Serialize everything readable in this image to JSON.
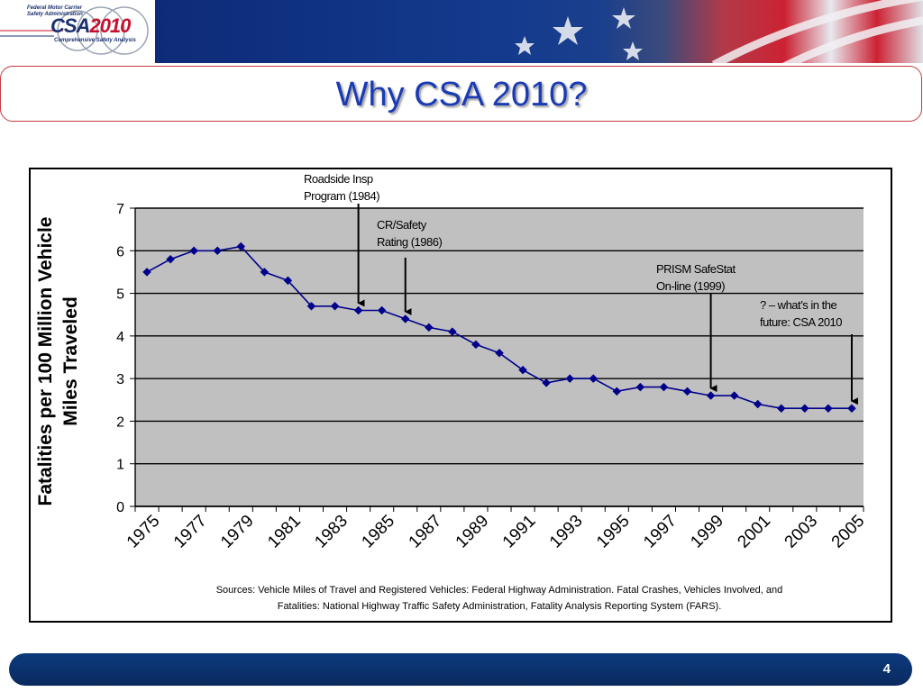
{
  "header": {
    "agency": "Federal Motor Carrier\nSafety Administration",
    "logo_csa": "CSA",
    "logo_year": "2010",
    "logo_sub": "Comprehensive Safety Analysis"
  },
  "title": "Why CSA 2010?",
  "colors": {
    "title": "#1a3bb5",
    "series": "#00008b",
    "plot_bg": "#c0c0c0",
    "footer": "#0a2a5e"
  },
  "chart_data": {
    "type": "line",
    "ylabel": "Fatalities per 100 Million Vehicle Miles Traveled",
    "xlabel": "",
    "ylim": [
      0,
      7
    ],
    "yticks": [
      "0",
      "1",
      "2",
      "3",
      "4",
      "5",
      "6",
      "7"
    ],
    "x": [
      1975,
      1976,
      1977,
      1978,
      1979,
      1980,
      1981,
      1982,
      1983,
      1984,
      1985,
      1986,
      1987,
      1988,
      1989,
      1990,
      1991,
      1992,
      1993,
      1994,
      1995,
      1996,
      1997,
      1998,
      1999,
      2000,
      2001,
      2002,
      2003,
      2004,
      2005
    ],
    "xticks": [
      "1975",
      "1977",
      "1979",
      "1981",
      "1983",
      "1985",
      "1987",
      "1989",
      "1991",
      "1993",
      "1995",
      "1997",
      "1999",
      "2001",
      "2003",
      "2005"
    ],
    "series": [
      {
        "values": [
          5.5,
          5.8,
          6.0,
          6.0,
          6.1,
          5.5,
          5.3,
          4.7,
          4.7,
          4.6,
          4.6,
          4.4,
          4.2,
          4.1,
          3.8,
          3.6,
          3.2,
          2.9,
          3.0,
          3.0,
          2.7,
          2.8,
          2.8,
          2.7,
          2.6,
          2.6,
          2.4,
          2.3,
          2.3,
          2.3,
          2.3
        ]
      }
    ],
    "grid": true,
    "annotations": [
      {
        "text": "Roadside Insp\nProgram (1984)",
        "x": 1984,
        "y": 4.6
      },
      {
        "text": "CR/Safety\nRating (1986)",
        "x": 1986,
        "y": 4.4
      },
      {
        "text": "PRISM SafeStat\nOn-line (1999)",
        "x": 1999,
        "y": 2.6
      },
      {
        "text": "? – what’s in the\nfuture: CSA  2010",
        "x": 2005,
        "y": 2.3
      }
    ],
    "sources": "Sources: Vehicle Miles of Travel and Registered Vehicles: Federal Highway Administration. Fatal Crashes, Vehicles Involved, and\nFatalities: National Highway Traffic Safety Administration, Fatality Analysis Reporting System (FARS)."
  },
  "footer": {
    "page_number": "4"
  }
}
